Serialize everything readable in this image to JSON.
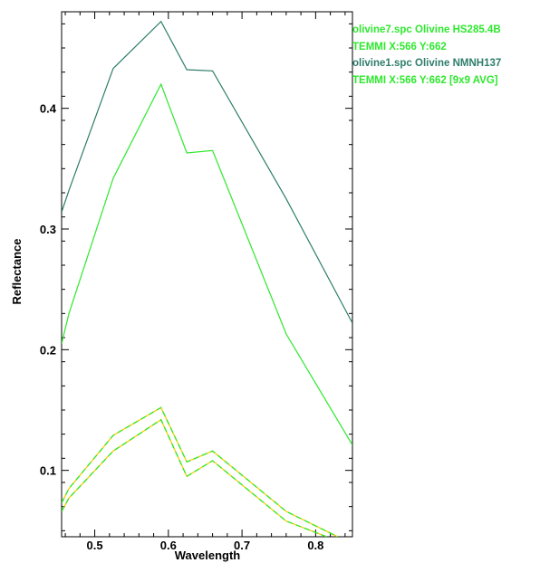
{
  "chart_data": {
    "type": "line",
    "xlabel": "Wavelength",
    "ylabel": "Reflectance",
    "xlim": [
      0.455,
      0.85
    ],
    "ylim": [
      0.045,
      0.48
    ],
    "x_ticks": [
      "0.5",
      "0.6",
      "0.7",
      "0.8"
    ],
    "y_ticks": [
      "0.1",
      "0.2",
      "0.3",
      "0.4"
    ],
    "x_tick_values": [
      0.5,
      0.6,
      0.7,
      0.8
    ],
    "y_tick_values": [
      0.1,
      0.2,
      0.3,
      0.4
    ],
    "legend_position": "top-right, outside plot",
    "series": [
      {
        "color": "#2e7d6a",
        "style": "solid",
        "x": [
          0.455,
          0.465,
          0.525,
          0.59,
          0.625,
          0.66,
          0.76,
          0.85
        ],
        "y": [
          0.314,
          0.332,
          0.433,
          0.472,
          0.432,
          0.431,
          0.325,
          0.222
        ]
      },
      {
        "color": "#2ee82e",
        "style": "solid",
        "x": [
          0.455,
          0.465,
          0.525,
          0.59,
          0.625,
          0.66,
          0.76,
          0.85
        ],
        "y": [
          0.205,
          0.23,
          0.342,
          0.42,
          0.363,
          0.365,
          0.213,
          0.121
        ]
      },
      {
        "color": "#f4d000",
        "dash_color": "#2ee82e",
        "style": "dashed",
        "x": [
          0.455,
          0.465,
          0.525,
          0.59,
          0.625,
          0.66,
          0.76,
          0.83
        ],
        "y": [
          0.073,
          0.085,
          0.129,
          0.152,
          0.107,
          0.116,
          0.066,
          0.045
        ]
      },
      {
        "color": "#f4d000",
        "dash_color": "#2ee82e",
        "style": "dashed",
        "x": [
          0.455,
          0.465,
          0.525,
          0.59,
          0.625,
          0.66,
          0.76,
          0.815
        ],
        "y": [
          0.066,
          0.077,
          0.116,
          0.142,
          0.095,
          0.108,
          0.058,
          0.045
        ]
      }
    ]
  },
  "legend": {
    "line1": "olivine7.spc Olivine HS285.4B",
    "line2": "TEMMI X:566 Y:662",
    "line3": "olivine1.spc Olivine NMNH137",
    "line4": "TEMMI X:566 Y:662 [9x9 AVG]",
    "color1": "#2ee82e",
    "color2": "#2ee82e",
    "color3": "#2e7d6a",
    "color4": "#2ee82e"
  }
}
